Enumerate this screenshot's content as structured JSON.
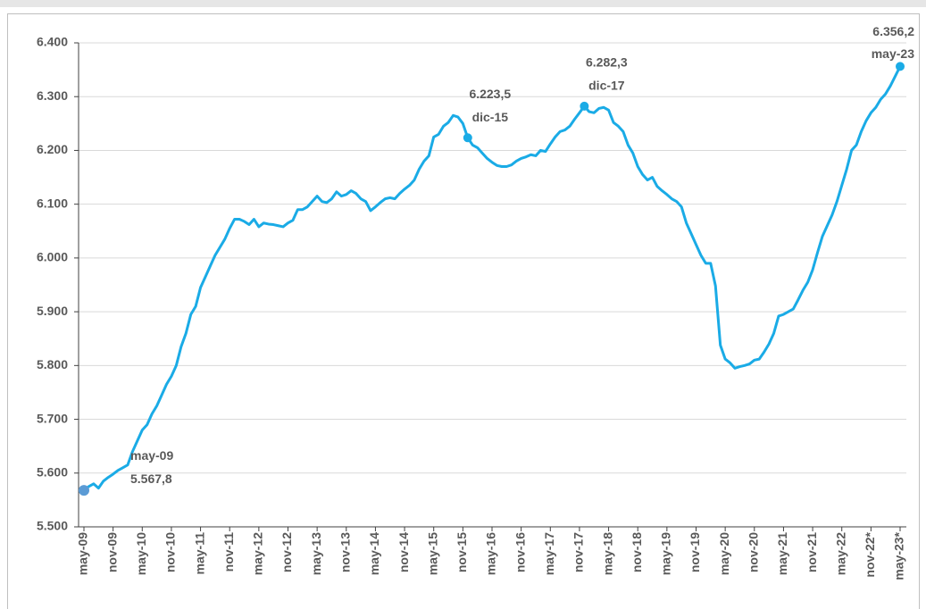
{
  "chart_data": {
    "type": "line",
    "color": "#1aabe6",
    "marker_color": "#5b9bd5",
    "categories": [
      "may-09",
      null,
      null,
      null,
      null,
      null,
      "nov-09",
      null,
      null,
      null,
      null,
      null,
      "may-10",
      null,
      null,
      null,
      null,
      null,
      "nov-10",
      null,
      null,
      null,
      null,
      null,
      "may-11",
      null,
      null,
      null,
      null,
      null,
      "nov-11",
      null,
      null,
      null,
      null,
      null,
      "may-12",
      null,
      null,
      null,
      null,
      null,
      "nov-12",
      null,
      null,
      null,
      null,
      null,
      "may-13",
      null,
      null,
      null,
      null,
      null,
      "nov-13",
      null,
      null,
      null,
      null,
      null,
      "may-14",
      null,
      null,
      null,
      null,
      null,
      "nov-14",
      null,
      null,
      null,
      null,
      null,
      "may-15",
      null,
      null,
      null,
      null,
      null,
      "nov-15",
      null,
      null,
      null,
      null,
      null,
      "may-16",
      null,
      null,
      null,
      null,
      null,
      "nov-16",
      null,
      null,
      null,
      null,
      null,
      "may-17",
      null,
      null,
      null,
      null,
      null,
      "nov-17",
      null,
      null,
      null,
      null,
      null,
      "may-18",
      null,
      null,
      null,
      null,
      null,
      "nov-18",
      null,
      null,
      null,
      null,
      null,
      "may-19",
      null,
      null,
      null,
      null,
      null,
      "nov-19",
      null,
      null,
      null,
      null,
      null,
      "may-20",
      null,
      null,
      null,
      null,
      null,
      "nov-20",
      null,
      null,
      null,
      null,
      null,
      "may-21",
      null,
      null,
      null,
      null,
      null,
      "nov-21",
      null,
      null,
      null,
      null,
      null,
      "may-22",
      null,
      null,
      null,
      null,
      null,
      "nov-22*",
      null,
      null,
      null,
      null,
      null,
      "may-23*"
    ],
    "values": [
      5567.8,
      5575,
      5580,
      5572,
      5585,
      5592,
      5598,
      5605,
      5610,
      5615,
      5640,
      5660,
      5680,
      5690,
      5710,
      5725,
      5745,
      5765,
      5780,
      5800,
      5835,
      5860,
      5895,
      5910,
      5945,
      5965,
      5985,
      6005,
      6020,
      6035,
      6055,
      6072,
      6072,
      6068,
      6062,
      6072,
      6058,
      6065,
      6063,
      6062,
      6060,
      6058,
      6065,
      6070,
      6090,
      6090,
      6095,
      6105,
      6115,
      6105,
      6103,
      6110,
      6123,
      6115,
      6118,
      6125,
      6120,
      6110,
      6105,
      6088,
      6095,
      6103,
      6110,
      6112,
      6110,
      6120,
      6128,
      6135,
      6145,
      6165,
      6180,
      6190,
      6225,
      6230,
      6245,
      6252,
      6265,
      6262,
      6250,
      6223.5,
      6210,
      6205,
      6195,
      6185,
      6178,
      6172,
      6170,
      6170,
      6173,
      6180,
      6185,
      6188,
      6192,
      6190,
      6200,
      6198,
      6212,
      6225,
      6235,
      6238,
      6245,
      6258,
      6270,
      6282.3,
      6272,
      6270,
      6278,
      6280,
      6275,
      6252,
      6245,
      6235,
      6210,
      6195,
      6170,
      6155,
      6145,
      6150,
      6133,
      6125,
      6118,
      6110,
      6105,
      6095,
      6065,
      6045,
      6025,
      6005,
      5990,
      5990,
      5948,
      5838,
      5812,
      5805,
      5795,
      5798,
      5800,
      5803,
      5810,
      5812,
      5825,
      5840,
      5860,
      5892,
      5895,
      5900,
      5905,
      5922,
      5940,
      5955,
      5978,
      6010,
      6040,
      6060,
      6080,
      6105,
      6135,
      6165,
      6200,
      6210,
      6235,
      6255,
      6270,
      6280,
      6295,
      6305,
      6320,
      6338,
      6356.2
    ],
    "value_labels": [
      "5.567,8",
      null,
      null,
      null,
      null,
      null,
      null,
      null,
      null,
      null,
      null,
      null,
      null,
      null,
      null,
      null,
      null,
      null,
      null,
      null,
      null,
      null,
      null,
      null,
      null,
      null,
      null,
      null,
      null,
      null,
      null,
      null,
      null,
      null,
      null,
      null,
      null,
      null,
      null,
      null,
      null,
      null,
      null,
      null,
      null,
      null,
      null,
      null,
      null,
      null,
      null,
      null,
      null,
      null,
      null,
      null,
      null,
      null,
      null,
      null,
      null,
      null,
      null,
      null,
      null,
      null,
      null,
      null,
      null,
      null,
      null,
      null,
      null,
      null,
      null,
      null,
      null,
      null,
      null,
      "6.223,5",
      null,
      null,
      null,
      null,
      null,
      null,
      null,
      null,
      null,
      null,
      null,
      null,
      null,
      null,
      null,
      null,
      null,
      null,
      null,
      null,
      null,
      null,
      null,
      "6.282,3",
      null,
      null,
      null,
      null,
      null,
      null,
      null,
      null,
      null,
      null,
      null,
      null,
      null,
      null,
      null,
      null,
      null,
      null,
      null,
      null,
      null,
      null,
      null,
      null,
      null,
      null,
      null,
      null,
      null,
      null,
      null,
      null,
      null,
      null,
      null,
      null,
      null,
      null,
      null,
      null,
      null,
      null,
      null,
      null,
      null,
      null,
      null,
      null,
      null,
      null,
      null,
      null,
      null,
      null,
      null,
      null,
      null,
      null,
      null,
      null,
      null,
      null,
      null,
      null,
      "6.356,2"
    ],
    "date_labels": [
      "may-09",
      null,
      null,
      null,
      null,
      null,
      null,
      null,
      null,
      null,
      null,
      null,
      null,
      null,
      null,
      null,
      null,
      null,
      null,
      null,
      null,
      null,
      null,
      null,
      null,
      null,
      null,
      null,
      null,
      null,
      null,
      null,
      null,
      null,
      null,
      null,
      null,
      null,
      null,
      null,
      null,
      null,
      null,
      null,
      null,
      null,
      null,
      null,
      null,
      null,
      null,
      null,
      null,
      null,
      null,
      null,
      null,
      null,
      null,
      null,
      null,
      null,
      null,
      null,
      null,
      null,
      null,
      null,
      null,
      null,
      null,
      null,
      null,
      null,
      null,
      null,
      null,
      null,
      null,
      "dic-15",
      null,
      null,
      null,
      null,
      null,
      null,
      null,
      null,
      null,
      null,
      null,
      null,
      null,
      null,
      null,
      null,
      null,
      null,
      null,
      null,
      null,
      null,
      null,
      "dic-17",
      null,
      null,
      null,
      null,
      null,
      null,
      null,
      null,
      null,
      null,
      null,
      null,
      null,
      null,
      null,
      null,
      null,
      null,
      null,
      null,
      null,
      null,
      null,
      null,
      null,
      null,
      null,
      null,
      null,
      null,
      null,
      null,
      null,
      null,
      null,
      null,
      null,
      null,
      null,
      null,
      null,
      null,
      null,
      null,
      null,
      null,
      null,
      null,
      null,
      null,
      null,
      null,
      null,
      null,
      null,
      null,
      null,
      null,
      null,
      null,
      null,
      null,
      null,
      null,
      "may-23"
    ],
    "ylim": [
      5500,
      6400
    ],
    "yticks": [
      {
        "value": 5500,
        "label": "5.500"
      },
      {
        "value": 5600,
        "label": "5.600"
      },
      {
        "value": 5700,
        "label": "5.700"
      },
      {
        "value": 5800,
        "label": "5.800"
      },
      {
        "value": 5900,
        "label": "5.900"
      },
      {
        "value": 6000,
        "label": "6.000"
      },
      {
        "value": 6100,
        "label": "6.100"
      },
      {
        "value": 6200,
        "label": "6.200"
      },
      {
        "value": 6300,
        "label": "6.300"
      },
      {
        "value": 6400,
        "label": "6.400"
      }
    ],
    "grid": true
  }
}
